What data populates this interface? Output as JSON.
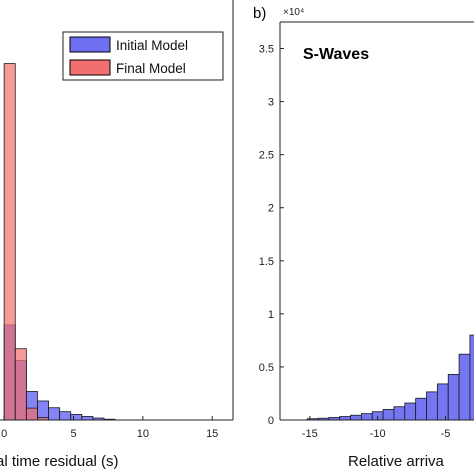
{
  "chart_data": [
    {
      "type": "bar",
      "panel": "a",
      "xlabel": "al time residual (s)",
      "xlim": [
        -0.3,
        16.5
      ],
      "xticks": [
        0,
        5,
        10,
        15
      ],
      "bin_width": 0.8,
      "series": [
        {
          "name": "Initial Model",
          "color": "#6f6ff2",
          "bins": [
            {
              "x": 0.0,
              "value": 0.24
            },
            {
              "x": 0.8,
              "value": 0.15
            },
            {
              "x": 1.6,
              "value": 0.072
            },
            {
              "x": 2.4,
              "value": 0.048
            },
            {
              "x": 3.2,
              "value": 0.031
            },
            {
              "x": 4.0,
              "value": 0.021
            },
            {
              "x": 4.8,
              "value": 0.014
            },
            {
              "x": 5.6,
              "value": 0.009
            },
            {
              "x": 6.4,
              "value": 0.005
            },
            {
              "x": 7.2,
              "value": 0.002
            }
          ]
        },
        {
          "name": "Final Model",
          "color": "#f26f6f",
          "bins": [
            {
              "x": 0.0,
              "value": 0.9
            },
            {
              "x": 0.8,
              "value": 0.18
            },
            {
              "x": 1.6,
              "value": 0.03
            },
            {
              "x": 2.4,
              "value": 0.006
            }
          ]
        }
      ],
      "legend": {
        "position": "top-right",
        "entries": [
          "Initial Model",
          "Final Model"
        ]
      }
    },
    {
      "type": "bar",
      "panel": "b",
      "title": "S-Waves",
      "letter": "b)",
      "xlabel": "Relative arriva",
      "xlim": [
        -17.2,
        -2.9
      ],
      "ylim": [
        0,
        37500
      ],
      "yticks": [
        0,
        0.5,
        1,
        1.5,
        2,
        2.5,
        3,
        3.5
      ],
      "yexponent": "×10⁴",
      "xticks": [
        -15,
        -10,
        -5
      ],
      "bin_width": 0.8,
      "series": [
        {
          "name": "Initial Model",
          "color": "#6f6ff2",
          "bins": [
            {
              "x": -15.2,
              "value": 120
            },
            {
              "x": -14.4,
              "value": 170
            },
            {
              "x": -13.6,
              "value": 240
            },
            {
              "x": -12.8,
              "value": 330
            },
            {
              "x": -12.0,
              "value": 450
            },
            {
              "x": -11.2,
              "value": 600
            },
            {
              "x": -10.4,
              "value": 780
            },
            {
              "x": -9.6,
              "value": 1000
            },
            {
              "x": -8.8,
              "value": 1250
            },
            {
              "x": -8.0,
              "value": 1600
            },
            {
              "x": -7.2,
              "value": 2050
            },
            {
              "x": -6.4,
              "value": 2650
            },
            {
              "x": -5.6,
              "value": 3400
            },
            {
              "x": -4.8,
              "value": 4300
            },
            {
              "x": -4.0,
              "value": 6200
            },
            {
              "x": -3.2,
              "value": 8000
            }
          ]
        }
      ]
    }
  ]
}
